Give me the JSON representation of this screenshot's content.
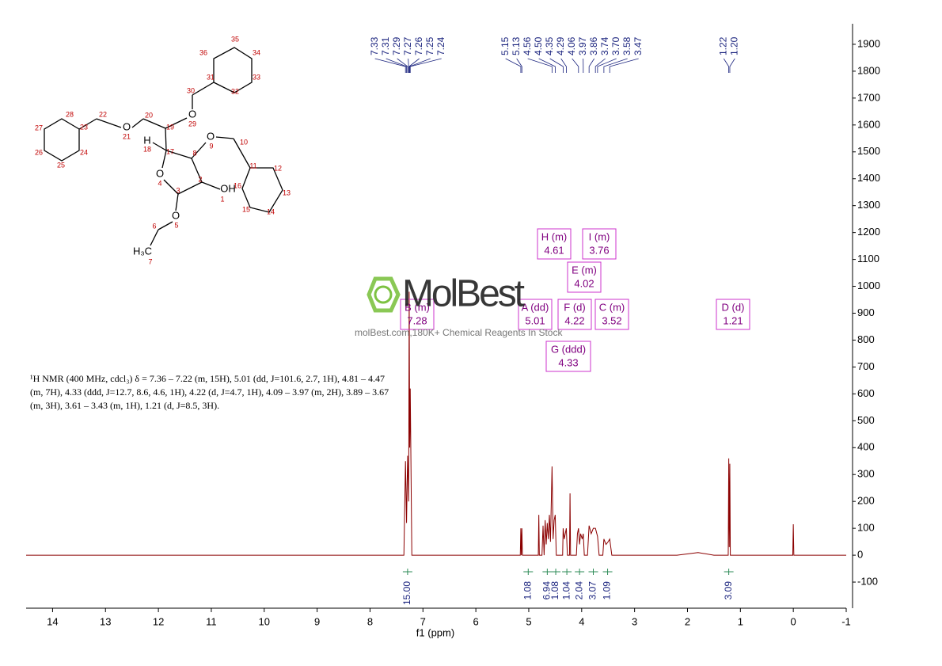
{
  "chart_data": {
    "type": "line",
    "xlabel": "f1 (ppm)",
    "description": "¹H NMR (400 MHz, cdcl₃) δ = 7.36 – 7.22 (m, 15H), 5.01 (dd, J=101.6, 2.7, 1H), 4.81 – 4.47 (m, 7H), 4.33 (ddd, J=12.7, 8.6, 4.6, 1H), 4.22 (d, J=4.7, 1H), 4.09 – 3.97 (m, 2H), 3.89 – 3.67 (m, 3H), 3.61 – 3.43 (m, 1H), 1.21 (d, J=8.5, 3H).",
    "xlim": [
      14.5,
      -1
    ],
    "xticks": [
      14,
      13,
      12,
      11,
      10,
      9,
      8,
      7,
      6,
      5,
      4,
      3,
      2,
      1,
      0,
      -1
    ],
    "ylim": [
      -200,
      2000
    ],
    "yticks": [
      -100,
      0,
      100,
      200,
      300,
      400,
      500,
      600,
      700,
      800,
      900,
      1000,
      1100,
      1200,
      1300,
      1400,
      1500,
      1600,
      1700,
      1800,
      1900
    ],
    "x": [
      14.5,
      7.36,
      7.33,
      7.31,
      7.29,
      7.27,
      7.26,
      7.25,
      7.24,
      7.21,
      5.16,
      5.15,
      5.14,
      5.13,
      5.12,
      4.82,
      4.81,
      4.8,
      4.75,
      4.73,
      4.71,
      4.69,
      4.67,
      4.65,
      4.63,
      4.61,
      4.59,
      4.56,
      4.54,
      4.52,
      4.5,
      4.48,
      4.36,
      4.35,
      4.33,
      4.31,
      4.29,
      4.27,
      4.23,
      4.22,
      4.21,
      4.1,
      4.08,
      4.06,
      4.04,
      4.02,
      3.99,
      3.97,
      3.95,
      3.89,
      3.86,
      3.82,
      3.78,
      3.74,
      3.7,
      3.67,
      3.6,
      3.58,
      3.54,
      3.5,
      3.47,
      3.43,
      2.2,
      1.8,
      1.5,
      1.23,
      1.22,
      1.21,
      1.2,
      1.19,
      0.01,
      0,
      -0.01,
      -1
    ],
    "series": [
      {
        "color": "#8b0000",
        "values": [
          0,
          0,
          350,
          120,
          370,
          200,
          980,
          400,
          620,
          0,
          0,
          100,
          0,
          100,
          0,
          0,
          150,
          0,
          0,
          110,
          0,
          130,
          40,
          120,
          60,
          150,
          50,
          330,
          60,
          130,
          150,
          0,
          0,
          100,
          60,
          80,
          100,
          0,
          0,
          230,
          0,
          0,
          80,
          100,
          40,
          80,
          60,
          80,
          0,
          0,
          110,
          80,
          100,
          100,
          70,
          0,
          0,
          60,
          40,
          50,
          60,
          0,
          0,
          10,
          0,
          0,
          360,
          30,
          340,
          0,
          0,
          115,
          0,
          0
        ]
      }
    ],
    "peak_labels": [
      7.33,
      7.31,
      7.29,
      7.27,
      7.26,
      7.25,
      7.24,
      5.15,
      5.13,
      4.56,
      {
        "value": 4.5,
        "label": "4.50"
      },
      4.35,
      4.29,
      4.06,
      3.97,
      3.86,
      3.74,
      {
        "value": 3.7,
        "label": "3.70"
      },
      3.58,
      3.47,
      1.22,
      {
        "value": 1.2,
        "label": "1.20"
      }
    ],
    "peak_label_color": "#1a237e",
    "integrals": {
      "x": [
        7.29,
        5.01,
        4.65,
        4.49,
        4.28,
        4.04,
        3.78,
        3.51,
        1.22
      ],
      "values": [
        15,
        1.08,
        6.94,
        1.08,
        1.04,
        2.04,
        3.07,
        1.09,
        3.09
      ],
      "value_labels": [
        "15.00",
        "1.08",
        "6.94",
        "1.08",
        "1.04",
        "2.04",
        "3.07",
        "1.09",
        "3.09"
      ],
      "color": "#1a237e"
    },
    "multiplets": [
      {
        "label": "B (m)",
        "shift": 7.28
      },
      {
        "label": "A (dd)",
        "shift": 5.01
      },
      {
        "label": "F (d)",
        "shift": 4.22
      },
      {
        "label": "C (m)",
        "shift": 3.52
      },
      {
        "label": "D (d)",
        "shift": 1.21
      },
      {
        "label": "H (m)",
        "shift": 4.61
      },
      {
        "label": "I (m)",
        "shift": 3.76
      },
      {
        "label": "E (m)",
        "shift": 4.02
      },
      {
        "label": "G (ddd)",
        "shift": 4.33
      }
    ],
    "multiplet_color": "#cc33cc",
    "watermark": {
      "brand": "MolBest",
      "tagline": "molBest.com,180K+ Chemical Reagents In Stock"
    }
  },
  "molecule": {
    "atom_numbers": [
      1,
      2,
      3,
      4,
      5,
      6,
      7,
      8,
      9,
      10,
      11,
      12,
      13,
      14,
      15,
      16,
      17,
      18,
      19,
      20,
      21,
      22,
      23,
      24,
      25,
      26,
      27,
      28,
      29,
      30,
      31,
      32,
      33,
      34,
      35,
      36
    ],
    "atom_labels": [
      "O",
      "O",
      "O",
      "O",
      "O",
      "OH",
      "H",
      "H₃C"
    ]
  }
}
